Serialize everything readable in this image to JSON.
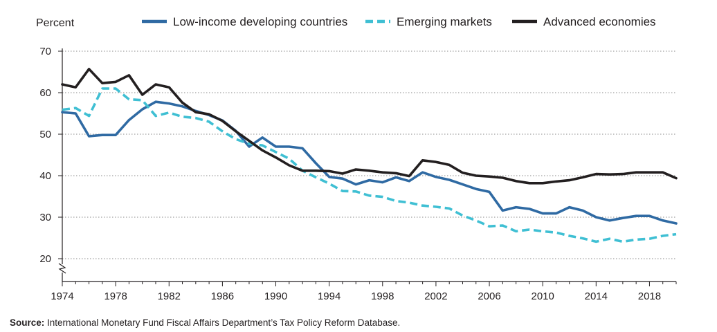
{
  "chart_data": {
    "type": "line",
    "ylabel": "Percent",
    "ylim": [
      20,
      70
    ],
    "yticks": [
      20,
      30,
      40,
      50,
      60,
      70
    ],
    "xlim": [
      1974,
      2020
    ],
    "xticks": [
      1974,
      1978,
      1982,
      1986,
      1990,
      1994,
      1998,
      2002,
      2006,
      2010,
      2014,
      2018
    ],
    "axis_break": true,
    "grid": "horizontal-dotted",
    "legend_position": "top",
    "x": [
      1974,
      1975,
      1976,
      1977,
      1978,
      1979,
      1980,
      1981,
      1982,
      1983,
      1984,
      1985,
      1986,
      1987,
      1988,
      1989,
      1990,
      1991,
      1992,
      1993,
      1994,
      1995,
      1996,
      1997,
      1998,
      1999,
      2000,
      2001,
      2002,
      2003,
      2004,
      2005,
      2006,
      2007,
      2008,
      2009,
      2010,
      2011,
      2012,
      2013,
      2014,
      2015,
      2016,
      2017,
      2018,
      2019,
      2020
    ],
    "series": [
      {
        "name": "Low-income developing countries",
        "color": "#2f6aa3",
        "style": "solid",
        "values": [
          55.3,
          55.0,
          49.5,
          49.8,
          49.8,
          53.4,
          56.0,
          57.8,
          57.4,
          56.7,
          55.6,
          54.6,
          53.3,
          50.8,
          47.0,
          49.2,
          47.0,
          47.0,
          46.6,
          43.0,
          39.7,
          39.3,
          37.9,
          38.9,
          38.4,
          39.6,
          38.7,
          40.8,
          39.7,
          39.0,
          37.9,
          36.8,
          36.1,
          31.6,
          32.4,
          32.0,
          30.9,
          30.9,
          32.4,
          31.6,
          30.0,
          29.2,
          29.8,
          30.3,
          30.3,
          29.2,
          28.5
        ]
      },
      {
        "name": "Emerging markets",
        "color": "#3fbfd3",
        "style": "dashed",
        "values": [
          55.9,
          56.3,
          54.4,
          61.0,
          61.0,
          58.4,
          58.2,
          54.4,
          55.2,
          54.2,
          53.9,
          53.0,
          50.7,
          48.8,
          47.7,
          47.3,
          45.7,
          44.1,
          41.2,
          39.6,
          38.1,
          36.3,
          36.2,
          35.2,
          34.9,
          33.9,
          33.5,
          32.8,
          32.5,
          32.1,
          30.4,
          29.2,
          27.8,
          28.0,
          26.6,
          27.0,
          26.6,
          26.3,
          25.5,
          24.9,
          24.1,
          24.8,
          24.1,
          24.6,
          24.8,
          25.5,
          25.9
        ]
      },
      {
        "name": "Advanced economies",
        "color": "#231f20",
        "style": "solid",
        "values": [
          62.0,
          61.3,
          65.7,
          62.3,
          62.6,
          64.2,
          59.5,
          62.0,
          61.3,
          57.6,
          55.3,
          54.8,
          53.2,
          50.7,
          48.4,
          46.1,
          44.4,
          42.5,
          41.2,
          41.2,
          41.1,
          40.5,
          41.5,
          41.2,
          40.8,
          40.6,
          39.9,
          43.7,
          43.3,
          42.6,
          40.7,
          40.0,
          39.8,
          39.5,
          38.7,
          38.2,
          38.2,
          38.6,
          38.9,
          39.6,
          40.4,
          40.3,
          40.4,
          40.8,
          40.8,
          40.8,
          39.4
        ]
      }
    ],
    "source_label": "Source:",
    "source_text": "International Monetary Fund Fiscal Affairs Department’s Tax Policy Reform Database."
  }
}
